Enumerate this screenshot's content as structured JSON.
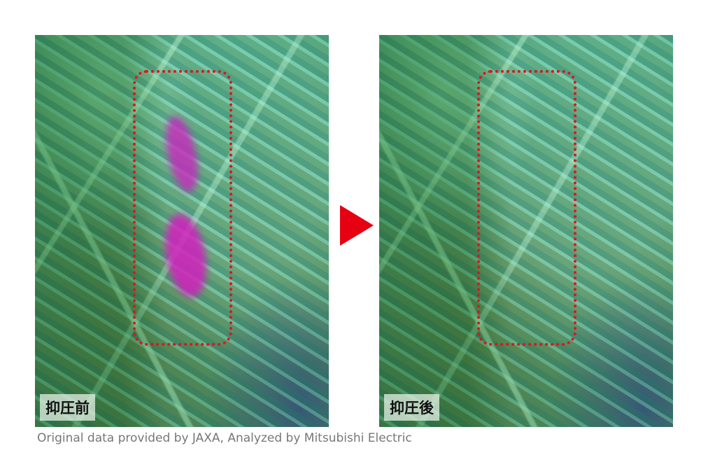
{
  "panels": [
    {
      "label": "抑圧前",
      "has_artifact": true
    },
    {
      "label": "抑圧後",
      "has_artifact": false
    }
  ],
  "arrow_color": "#e60012",
  "roi_color": "#e8101c",
  "caption": "Original data provided by JAXA, Analyzed by Mitsubishi Electric"
}
